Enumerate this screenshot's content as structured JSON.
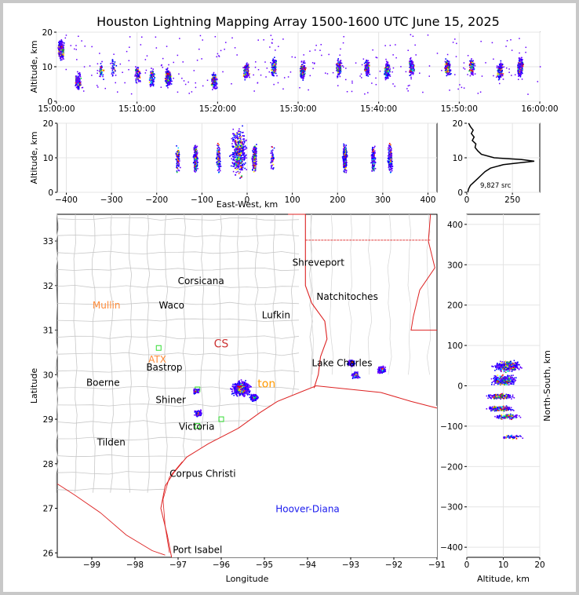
{
  "title": "Houston Lightning Mapping Array 1500-1600 UTC June 15, 2025",
  "colors": {
    "frame_bg": "#c8c8c8",
    "state_border": "#dd2222",
    "county_border": "#c8c8c8",
    "coast": "#dd2222",
    "city_label": "#000000",
    "highlight_orange": "#ff8c3a",
    "hoover_blue": "#1a1aee",
    "station_green": "#33dd33"
  },
  "chart_data": [
    {
      "panel": "time_altitude",
      "type": "scatter",
      "xlabel": "",
      "ylabel": "Altitude, km",
      "x_ticks": [
        "15:00:00",
        "15:10:00",
        "15:20:00",
        "15:30:00",
        "15:40:00",
        "15:50:00",
        "16:00:00"
      ],
      "xlim": [
        "15:00:00",
        "16:00:00"
      ],
      "y_ticks": [
        "0",
        "10",
        "20"
      ],
      "ylim": [
        0,
        20
      ],
      "clusters_minutes": [
        [
          0.5,
          15,
          10
        ],
        [
          2.6,
          6,
          5
        ],
        [
          5.5,
          9,
          1
        ],
        [
          7.0,
          10,
          1
        ],
        [
          10,
          8,
          2
        ],
        [
          11.8,
          7,
          3
        ],
        [
          13.8,
          7,
          8
        ],
        [
          19.5,
          6,
          4
        ],
        [
          23.5,
          9,
          4
        ],
        [
          26.9,
          10,
          3
        ],
        [
          30.5,
          9,
          4
        ],
        [
          35,
          10,
          4
        ],
        [
          38.5,
          10,
          3
        ],
        [
          41,
          9,
          5
        ],
        [
          44,
          10,
          3
        ],
        [
          48.5,
          10,
          5
        ],
        [
          51.5,
          10,
          3
        ],
        [
          55,
          9,
          5
        ],
        [
          57.5,
          10,
          6
        ]
      ]
    },
    {
      "panel": "east_west_altitude",
      "type": "scatter",
      "xlabel": "East-West, km",
      "ylabel": "Altitude, km",
      "x_ticks": [
        "−400",
        "−300",
        "−200",
        "−100",
        "0",
        "100",
        "200",
        "300",
        "400"
      ],
      "xlim": [
        -420,
        420
      ],
      "y_ticks": [
        "0",
        "10",
        "20"
      ],
      "ylim": [
        0,
        20
      ],
      "clusters_km": [
        [
          -155,
          10,
          2
        ],
        [
          -115,
          10,
          6
        ],
        [
          -65,
          10,
          3
        ],
        [
          -20,
          12,
          10
        ],
        [
          15,
          10,
          5
        ],
        [
          55,
          10,
          1
        ],
        [
          215,
          10,
          6
        ],
        [
          278,
          10,
          4
        ],
        [
          315,
          10,
          5
        ]
      ]
    },
    {
      "panel": "altitude_histogram",
      "type": "line",
      "x_ticks": [
        "0",
        "250"
      ],
      "xlim": [
        0,
        400
      ],
      "y_ticks": [
        "0",
        "10",
        "20"
      ],
      "ylim": [
        0,
        20
      ],
      "annotation": "9,827 src",
      "profile_alt": [
        0,
        1,
        2,
        3,
        4,
        5,
        6,
        7,
        8,
        8.5,
        9,
        9.5,
        10,
        11,
        12,
        13,
        14,
        15,
        16,
        17,
        18,
        19,
        20
      ],
      "profile_count": [
        5,
        10,
        20,
        40,
        60,
        80,
        100,
        130,
        200,
        280,
        370,
        300,
        150,
        80,
        60,
        45,
        50,
        30,
        40,
        25,
        35,
        20,
        10
      ]
    },
    {
      "panel": "map",
      "type": "scatter",
      "xlabel": "Longitude",
      "ylabel": "Latitude",
      "x_ticks": [
        "−99",
        "−98",
        "−97",
        "−96",
        "−95",
        "−94",
        "−93",
        "−92",
        "−91"
      ],
      "xlim": [
        -99.8,
        -91
      ],
      "y_ticks": [
        "26",
        "27",
        "28",
        "29",
        "30",
        "31",
        "32",
        "33"
      ],
      "ylim": [
        25.9,
        33.6
      ],
      "cities": [
        {
          "name": "Shreveport",
          "lon": -93.75,
          "lat": 32.52,
          "color": "#000000"
        },
        {
          "name": "Corsicana",
          "lon": -96.47,
          "lat": 32.1,
          "color": "#000000"
        },
        {
          "name": "Natchitoches",
          "lon": -93.08,
          "lat": 31.75,
          "color": "#000000"
        },
        {
          "name": "Mullin",
          "lon": -98.66,
          "lat": 31.56,
          "color": "#ff8c3a"
        },
        {
          "name": "Waco",
          "lon": -97.15,
          "lat": 31.56,
          "color": "#000000"
        },
        {
          "name": "Lufkin",
          "lon": -94.73,
          "lat": 31.34,
          "color": "#000000"
        },
        {
          "name": "ATX",
          "lon": -97.48,
          "lat": 30.34,
          "color": "#ff8c3a"
        },
        {
          "name": "Bastrop",
          "lon": -97.32,
          "lat": 30.16,
          "color": "#000000"
        },
        {
          "name": "Lake Charles",
          "lon": -93.2,
          "lat": 30.26,
          "color": "#000000"
        },
        {
          "name": "Boerne",
          "lon": -98.74,
          "lat": 29.82,
          "color": "#000000"
        },
        {
          "name": "Shiner",
          "lon": -97.17,
          "lat": 29.43,
          "color": "#000000"
        },
        {
          "name": "Victoria",
          "lon": -96.57,
          "lat": 28.83,
          "color": "#000000"
        },
        {
          "name": "Tilden",
          "lon": -98.55,
          "lat": 28.48,
          "color": "#000000"
        },
        {
          "name": "Corpus Christi",
          "lon": -96.43,
          "lat": 27.78,
          "color": "#000000"
        },
        {
          "name": "Hoover-Diana",
          "lon": -94.0,
          "lat": 26.98,
          "color": "#1a1aee"
        },
        {
          "name": "Port Isabel",
          "lon": -96.55,
          "lat": 26.07,
          "color": "#000000"
        }
      ],
      "partial_labels": [
        {
          "text": "CS",
          "lon": -96.0,
          "lat": 30.7,
          "color": "#cc3333"
        },
        {
          "text": "ton",
          "lon": -94.95,
          "lat": 29.8,
          "color": "#ff9900"
        }
      ],
      "lightning_clusters_lonlat": [
        [
          -95.55,
          29.7,
          9
        ],
        [
          -95.25,
          29.5,
          4
        ],
        [
          -93.0,
          30.28,
          4
        ],
        [
          -92.3,
          30.12,
          6
        ],
        [
          -92.9,
          30.0,
          2
        ],
        [
          -96.55,
          29.15,
          2
        ],
        [
          -96.6,
          29.65,
          1
        ]
      ]
    },
    {
      "panel": "altitude_north_south",
      "type": "scatter",
      "xlabel": "Altitude, km",
      "ylabel": "North-South, km",
      "x_ticks": [
        "0",
        "10",
        "20"
      ],
      "xlim": [
        0,
        20
      ],
      "y_ticks": [
        "−400",
        "−300",
        "−200",
        "−100",
        "0",
        "100",
        "200",
        "300",
        "400"
      ],
      "ylim": [
        -425,
        425
      ],
      "clusters_km": [
        [
          11,
          50,
          10
        ],
        [
          10,
          15,
          8
        ],
        [
          9,
          -25,
          6
        ],
        [
          9,
          -55,
          5
        ],
        [
          11,
          -75,
          3
        ],
        [
          12,
          -125,
          1
        ]
      ]
    }
  ]
}
